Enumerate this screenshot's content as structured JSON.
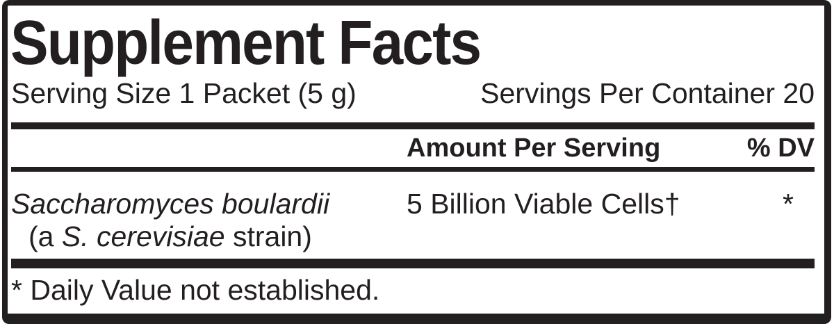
{
  "panel": {
    "title": "Supplement Facts",
    "serving_line": {
      "serving_size": "Serving Size 1 Packet (5 g)",
      "servings_per_container": "Servings Per Container 20"
    },
    "columns": {
      "amount_header": "Amount Per Serving",
      "dv_header": "% DV"
    },
    "rows": [
      {
        "name": "Saccharomyces boulardii",
        "name_note_prefix": "(a ",
        "name_note_species": "S. cerevisiae",
        "name_note_suffix": " strain)",
        "amount": "5 Billion Viable Cells†",
        "dv": "*"
      }
    ],
    "footnote": "* Daily Value not established.",
    "colors": {
      "ink": "#231f20",
      "paper": "#ffffff"
    }
  }
}
